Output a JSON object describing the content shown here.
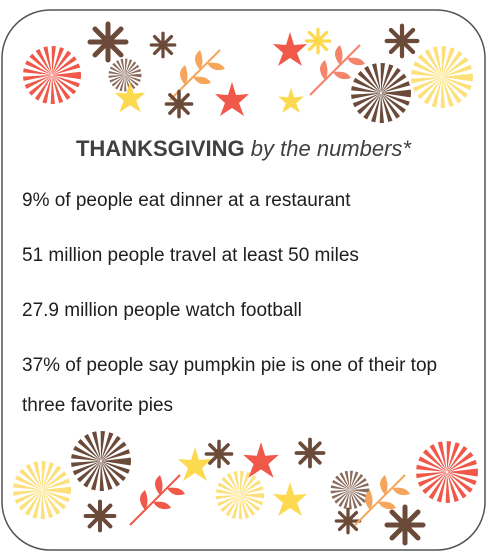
{
  "header": {
    "title_bold": "THANKSGIVING",
    "title_italic": "by the numbers*"
  },
  "facts": [
    "9% of people eat dinner at a restaurant",
    "51 million people travel at least 50 miles",
    "27.9 million people watch football",
    "37% of people say pumpkin pie is one of their top three favorite pies"
  ]
}
